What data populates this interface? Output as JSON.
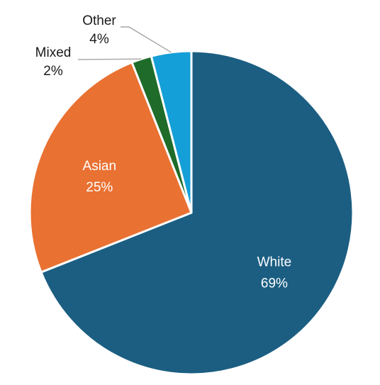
{
  "chart_data": {
    "type": "pie",
    "title": "",
    "start": "top, clockwise",
    "slices": [
      {
        "name": "White",
        "value": 69,
        "label": "69%",
        "color": "#1b5e82"
      },
      {
        "name": "Asian",
        "value": 25,
        "label": "25%",
        "color": "#e97132"
      },
      {
        "name": "Mixed",
        "value": 2,
        "label": "2%",
        "color": "#1e6b2a"
      },
      {
        "name": "Other",
        "value": 4,
        "label": "4%",
        "color": "#159fd8"
      }
    ],
    "legend": "none"
  }
}
